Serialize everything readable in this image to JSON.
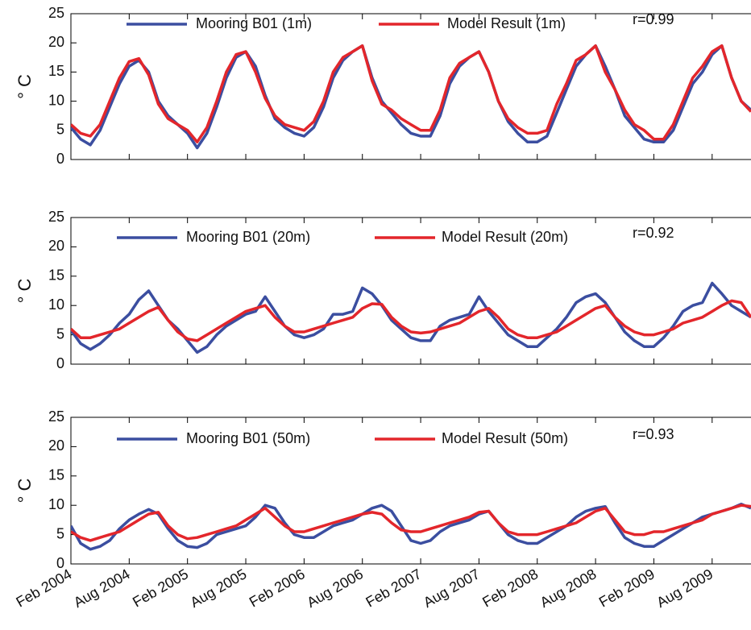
{
  "chart_data": [
    {
      "type": "line",
      "ylabel": "° C",
      "annotation": "r=0.99",
      "x": [
        "2004-02",
        "2004-03",
        "2004-04",
        "2004-05",
        "2004-06",
        "2004-07",
        "2004-08",
        "2004-09",
        "2004-10",
        "2004-11",
        "2004-12",
        "2005-01",
        "2005-02",
        "2005-03",
        "2005-04",
        "2005-05",
        "2005-06",
        "2005-07",
        "2005-08",
        "2005-09",
        "2005-10",
        "2005-11",
        "2005-12",
        "2006-01",
        "2006-02",
        "2006-03",
        "2006-04",
        "2006-05",
        "2006-06",
        "2006-07",
        "2006-08",
        "2006-09",
        "2006-10",
        "2006-11",
        "2006-12",
        "2007-01",
        "2007-02",
        "2007-03",
        "2007-04",
        "2007-05",
        "2007-06",
        "2007-07",
        "2007-08",
        "2007-09",
        "2007-10",
        "2007-11",
        "2007-12",
        "2008-01",
        "2008-02",
        "2008-03",
        "2008-04",
        "2008-05",
        "2008-06",
        "2008-07",
        "2008-08",
        "2008-09",
        "2008-10",
        "2008-11",
        "2008-12",
        "2009-01",
        "2009-02",
        "2009-03",
        "2009-04",
        "2009-05",
        "2009-06",
        "2009-07",
        "2009-08",
        "2009-09",
        "2009-10",
        "2009-11",
        "2009-12"
      ],
      "series": [
        {
          "name": "Mooring B01 (1m)",
          "color": "#3b4ea0",
          "values": [
            5.5,
            3.5,
            2.5,
            5,
            9,
            13,
            16,
            17,
            15,
            10,
            7.5,
            6,
            4.5,
            2,
            4.5,
            9,
            14,
            17.5,
            18.5,
            16,
            11,
            7,
            5.5,
            4.5,
            4,
            5.5,
            9,
            14,
            17,
            18.5,
            19.5,
            14,
            10,
            8,
            6,
            4.5,
            4,
            4,
            7.5,
            13,
            16,
            17.5,
            18.5,
            15,
            10,
            6.5,
            4.5,
            3,
            3,
            4,
            8,
            12,
            16,
            18,
            19.5,
            16,
            12,
            7.5,
            5.5,
            3.5,
            3,
            3,
            5,
            9,
            13,
            15,
            18,
            19.5,
            14,
            10,
            8.5
          ]
        },
        {
          "name": "Model Result (1m)",
          "color": "#e3262b",
          "values": [
            6,
            4.5,
            4,
            6,
            10,
            14,
            16.8,
            17.3,
            14.5,
            9.5,
            7,
            6,
            5,
            3,
            5.5,
            10,
            15,
            18,
            18.5,
            15,
            10.5,
            7.5,
            6,
            5.5,
            5,
            6.5,
            10,
            15,
            17.5,
            18.5,
            19.5,
            13.5,
            9.5,
            8.5,
            7,
            6,
            5,
            5,
            8.5,
            14,
            16.5,
            17.5,
            18.5,
            15,
            10,
            7,
            5.5,
            4.5,
            4.5,
            5,
            9.5,
            13,
            17,
            18,
            19.5,
            15,
            12,
            8.5,
            6,
            5,
            3.5,
            3.5,
            6,
            10,
            14,
            16,
            18.5,
            19.5,
            14,
            10,
            8.2
          ]
        }
      ],
      "xlim": [
        "2004-02",
        "2009-12"
      ],
      "xticks": [
        "2004-02",
        "2004-08",
        "2005-02",
        "2005-08",
        "2006-02",
        "2006-08",
        "2007-02",
        "2007-08",
        "2008-02",
        "2008-08",
        "2009-02",
        "2009-08"
      ],
      "ylim": [
        0,
        25
      ],
      "yticks": [
        0,
        5,
        10,
        15,
        20,
        25
      ]
    },
    {
      "type": "line",
      "ylabel": "° C",
      "annotation": "r=0.92",
      "x": [
        "2004-02",
        "2004-03",
        "2004-04",
        "2004-05",
        "2004-06",
        "2004-07",
        "2004-08",
        "2004-09",
        "2004-10",
        "2004-11",
        "2004-12",
        "2005-01",
        "2005-02",
        "2005-03",
        "2005-04",
        "2005-05",
        "2005-06",
        "2005-07",
        "2005-08",
        "2005-09",
        "2005-10",
        "2005-11",
        "2005-12",
        "2006-01",
        "2006-02",
        "2006-03",
        "2006-04",
        "2006-05",
        "2006-06",
        "2006-07",
        "2006-08",
        "2006-09",
        "2006-10",
        "2006-11",
        "2006-12",
        "2007-01",
        "2007-02",
        "2007-03",
        "2007-04",
        "2007-05",
        "2007-06",
        "2007-07",
        "2007-08",
        "2007-09",
        "2007-10",
        "2007-11",
        "2007-12",
        "2008-01",
        "2008-02",
        "2008-03",
        "2008-04",
        "2008-05",
        "2008-06",
        "2008-07",
        "2008-08",
        "2008-09",
        "2008-10",
        "2008-11",
        "2008-12",
        "2009-01",
        "2009-02",
        "2009-03",
        "2009-04",
        "2009-05",
        "2009-06",
        "2009-07",
        "2009-08",
        "2009-09",
        "2009-10",
        "2009-11",
        "2009-12"
      ],
      "series": [
        {
          "name": "Mooring B01 (20m)",
          "color": "#3b4ea0",
          "values": [
            5.8,
            3.5,
            2.5,
            3.5,
            5,
            7,
            8.5,
            11,
            12.5,
            10,
            7.5,
            6,
            4,
            2,
            3,
            5,
            6.5,
            7.5,
            8.5,
            9,
            11.5,
            9,
            6.5,
            5,
            4.5,
            5,
            6,
            8.5,
            8.5,
            9,
            13,
            12,
            10,
            7.5,
            6,
            4.5,
            4,
            4,
            6.5,
            7.5,
            8,
            8.5,
            11.5,
            9,
            7,
            5,
            4,
            3,
            3,
            4.5,
            6,
            8,
            10.5,
            11.5,
            12,
            10.5,
            8,
            5.5,
            4,
            3,
            3,
            4.5,
            6.5,
            9,
            10,
            10.5,
            13.8,
            12,
            10,
            9,
            8
          ]
        },
        {
          "name": "Model Result (20m)",
          "color": "#e3262b",
          "values": [
            6,
            4.5,
            4.5,
            5,
            5.5,
            6,
            7,
            8,
            9,
            9.7,
            7.5,
            5.5,
            4.3,
            4,
            5,
            6,
            7,
            8,
            9,
            9.5,
            10,
            8,
            6.5,
            5.5,
            5.5,
            6,
            6.5,
            7,
            7.5,
            8,
            9.5,
            10.3,
            10.2,
            8,
            6.5,
            5.5,
            5.3,
            5.5,
            6,
            6.5,
            7,
            8,
            9,
            9.5,
            8,
            6,
            5,
            4.5,
            4.5,
            5,
            5.5,
            6.5,
            7.5,
            8.5,
            9.5,
            10,
            8,
            6.5,
            5.5,
            5,
            5,
            5.5,
            6,
            7,
            7.5,
            8,
            9,
            10,
            10.8,
            10.5,
            8
          ]
        }
      ],
      "xlim": [
        "2004-02",
        "2009-12"
      ],
      "xticks": [
        "2004-02",
        "2004-08",
        "2005-02",
        "2005-08",
        "2006-02",
        "2006-08",
        "2007-02",
        "2007-08",
        "2008-02",
        "2008-08",
        "2009-02",
        "2009-08"
      ],
      "ylim": [
        0,
        25
      ],
      "yticks": [
        0,
        5,
        10,
        15,
        20,
        25
      ]
    },
    {
      "type": "line",
      "ylabel": "° C",
      "annotation": "r=0.93",
      "x": [
        "2004-02",
        "2004-03",
        "2004-04",
        "2004-05",
        "2004-06",
        "2004-07",
        "2004-08",
        "2004-09",
        "2004-10",
        "2004-11",
        "2004-12",
        "2005-01",
        "2005-02",
        "2005-03",
        "2005-04",
        "2005-05",
        "2005-06",
        "2005-07",
        "2005-08",
        "2005-09",
        "2005-10",
        "2005-11",
        "2005-12",
        "2006-01",
        "2006-02",
        "2006-03",
        "2006-04",
        "2006-05",
        "2006-06",
        "2006-07",
        "2006-08",
        "2006-09",
        "2006-10",
        "2006-11",
        "2006-12",
        "2007-01",
        "2007-02",
        "2007-03",
        "2007-04",
        "2007-05",
        "2007-06",
        "2007-07",
        "2007-08",
        "2007-09",
        "2007-10",
        "2007-11",
        "2007-12",
        "2008-01",
        "2008-02",
        "2008-03",
        "2008-04",
        "2008-05",
        "2008-06",
        "2008-07",
        "2008-08",
        "2008-09",
        "2008-10",
        "2008-11",
        "2008-12",
        "2009-01",
        "2009-02",
        "2009-03",
        "2009-04",
        "2009-05",
        "2009-06",
        "2009-07",
        "2009-08",
        "2009-09",
        "2009-10",
        "2009-11",
        "2009-12"
      ],
      "series": [
        {
          "name": "Mooring B01 (50m)",
          "color": "#3b4ea0",
          "values": [
            6.5,
            3.5,
            2.5,
            3,
            4,
            6,
            7.5,
            8.5,
            9.3,
            8.5,
            6,
            4,
            3,
            2.8,
            3.5,
            5,
            5.5,
            6,
            6.5,
            8,
            10,
            9.5,
            7,
            5,
            4.5,
            4.5,
            5.5,
            6.5,
            7,
            7.5,
            8.5,
            9.5,
            10,
            9,
            6.5,
            4,
            3.5,
            4,
            5.5,
            6.5,
            7,
            7.5,
            8.5,
            9,
            7,
            5,
            4,
            3.5,
            3.5,
            4.5,
            5.5,
            6.5,
            8,
            9,
            9.5,
            9.8,
            7,
            4.5,
            3.5,
            3,
            3,
            4,
            5,
            6,
            7,
            8,
            8.5,
            9,
            9.5,
            10.2,
            9.5
          ]
        },
        {
          "name": "Model Result (50m)",
          "color": "#e3262b",
          "values": [
            5.5,
            4.5,
            4,
            4.5,
            5,
            5.5,
            6.5,
            7.5,
            8.5,
            8.8,
            6.5,
            5,
            4.3,
            4.5,
            5,
            5.5,
            6,
            6.5,
            7.5,
            8.5,
            9.5,
            8,
            6.5,
            5.5,
            5.5,
            6,
            6.5,
            7,
            7.5,
            8,
            8.5,
            8.8,
            8.5,
            7,
            5.8,
            5.5,
            5.5,
            6,
            6.5,
            7,
            7.5,
            8,
            8.8,
            9,
            7,
            5.5,
            5,
            5,
            5,
            5.5,
            6,
            6.5,
            7,
            8,
            9,
            9.5,
            7.5,
            5.5,
            5,
            5,
            5.5,
            5.5,
            6,
            6.5,
            7,
            7.5,
            8.5,
            9,
            9.5,
            10,
            9.8
          ]
        }
      ],
      "xlim": [
        "2004-02",
        "2009-12"
      ],
      "xticks": [
        {
          "value": "2004-02",
          "label": "Feb 2004"
        },
        {
          "value": "2004-08",
          "label": "Aug 2004"
        },
        {
          "value": "2005-02",
          "label": "Feb 2005"
        },
        {
          "value": "2005-08",
          "label": "Aug 2005"
        },
        {
          "value": "2006-02",
          "label": "Feb 2006"
        },
        {
          "value": "2006-08",
          "label": "Aug 2006"
        },
        {
          "value": "2007-02",
          "label": "Feb 2007"
        },
        {
          "value": "2007-08",
          "label": "Aug 2007"
        },
        {
          "value": "2008-02",
          "label": "Feb 2008"
        },
        {
          "value": "2008-08",
          "label": "Aug 2008"
        },
        {
          "value": "2009-02",
          "label": "Feb 2009"
        },
        {
          "value": "2009-08",
          "label": "Aug 2009"
        }
      ],
      "ylim": [
        0,
        25
      ],
      "yticks": [
        0,
        5,
        10,
        15,
        20,
        25
      ]
    }
  ]
}
